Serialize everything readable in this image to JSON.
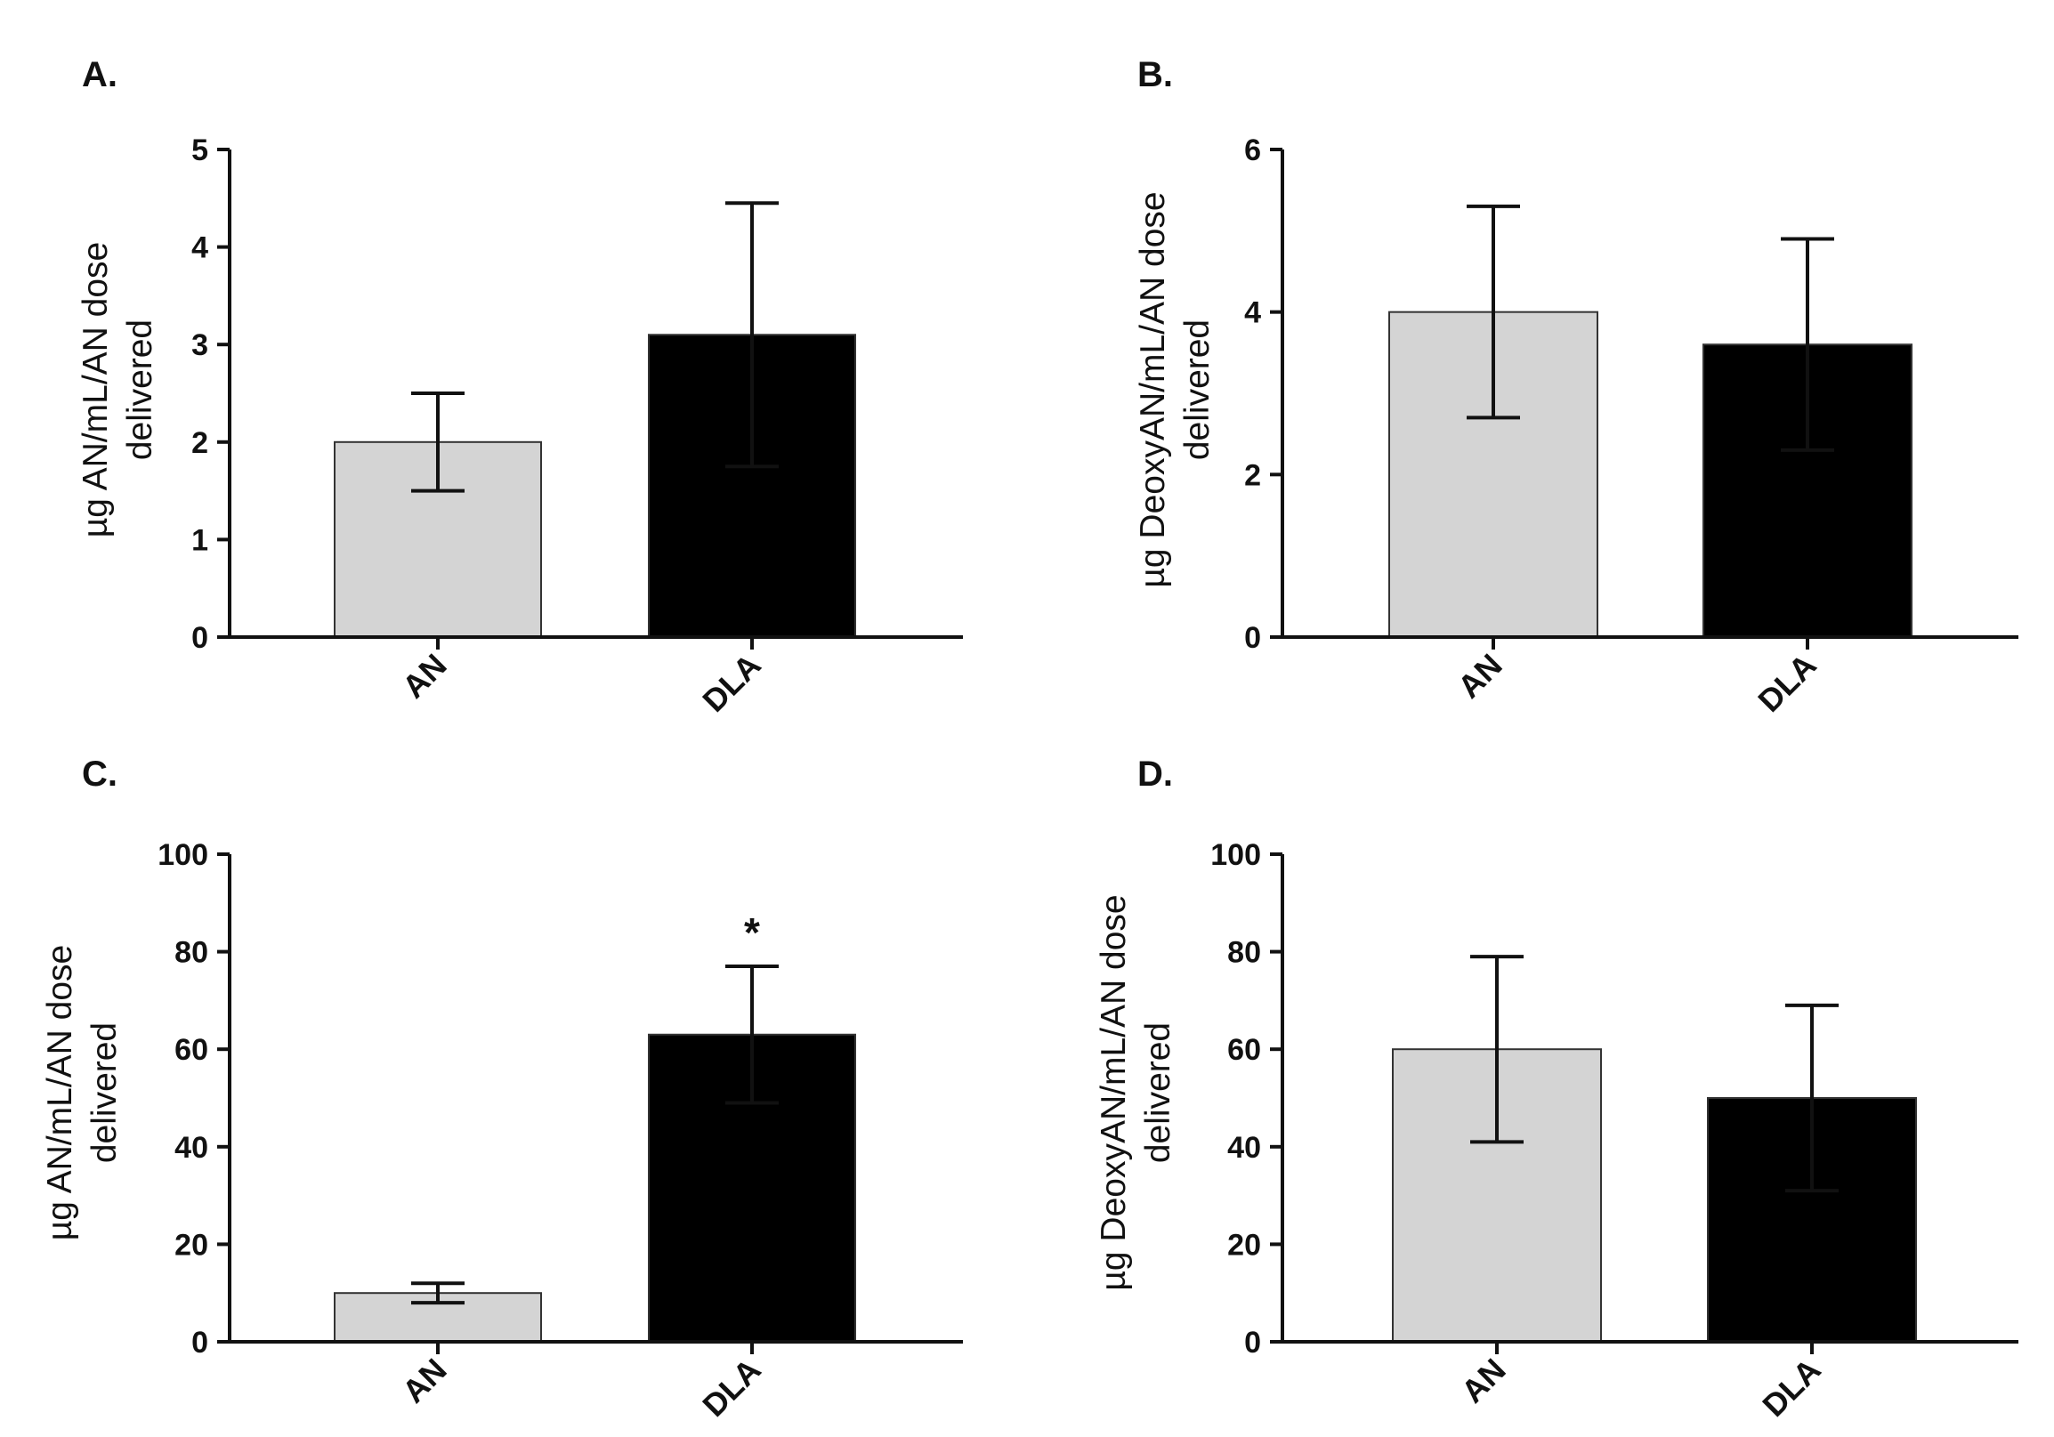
{
  "colors": {
    "an_bar": "#d4d4d4",
    "dla_bar": "#000000",
    "axis": "#111111"
  },
  "chart_data": [
    {
      "panel": "A.",
      "type": "bar",
      "categories": [
        "AN",
        "DLA"
      ],
      "values": [
        2.0,
        3.1
      ],
      "errors": [
        0.5,
        1.35
      ],
      "ylabel": [
        "µg AN/mL/AN dose",
        "delivered"
      ],
      "ylim": [
        0,
        5
      ],
      "yticks": [
        "0",
        "1",
        "2",
        "3",
        "4",
        "5"
      ],
      "annotations": [
        null,
        null
      ],
      "grid": false
    },
    {
      "panel": "B.",
      "type": "bar",
      "categories": [
        "AN",
        "DLA"
      ],
      "values": [
        4.0,
        3.6
      ],
      "errors": [
        1.3,
        1.3
      ],
      "ylabel": [
        "µg DeoxyAN/mL/AN dose",
        "delivered"
      ],
      "ylim": [
        0,
        6
      ],
      "yticks": [
        "0",
        "2",
        "4",
        "6"
      ],
      "annotations": [
        null,
        null
      ],
      "grid": false
    },
    {
      "panel": "C.",
      "type": "bar",
      "categories": [
        "AN",
        "DLA"
      ],
      "values": [
        10,
        63
      ],
      "errors": [
        2,
        14
      ],
      "ylabel": [
        "µg AN/mL/AN dose",
        "delivered"
      ],
      "ylim": [
        0,
        100
      ],
      "yticks": [
        "0",
        "20",
        "40",
        "60",
        "80",
        "100"
      ],
      "annotations": [
        null,
        "*"
      ],
      "grid": false
    },
    {
      "panel": "D.",
      "type": "bar",
      "categories": [
        "AN",
        "DLA"
      ],
      "values": [
        60,
        50
      ],
      "errors": [
        19,
        19
      ],
      "ylabel": [
        "µg DeoxyAN/mL/AN dose",
        "delivered"
      ],
      "ylim": [
        0,
        100
      ],
      "yticks": [
        "0",
        "20",
        "40",
        "60",
        "80",
        "100"
      ],
      "annotations": [
        null,
        null
      ],
      "grid": false
    }
  ]
}
